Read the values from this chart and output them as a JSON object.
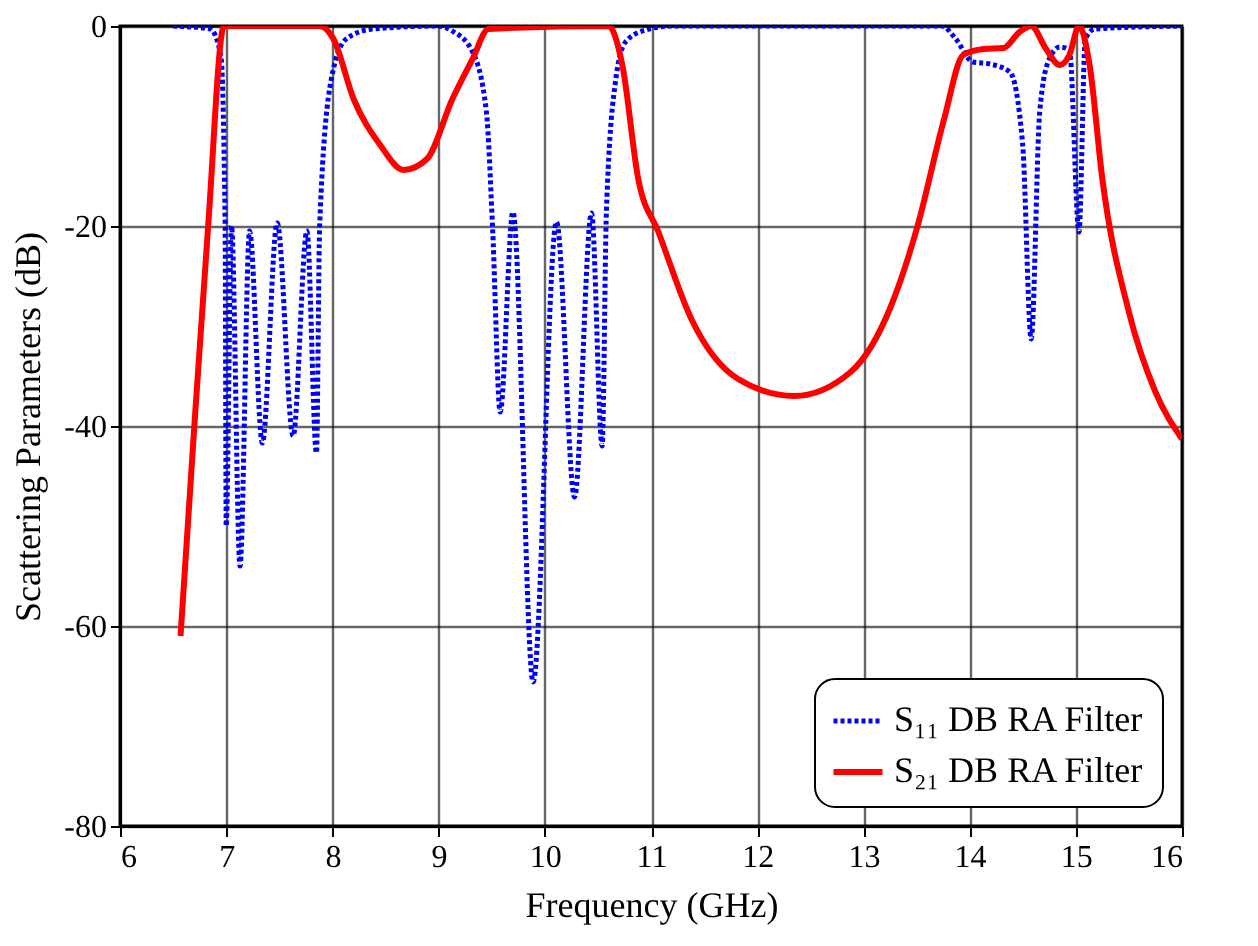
{
  "chart_data": {
    "type": "line",
    "xlabel": "Frequency (GHz)",
    "ylabel": "Scattering Parameters (dB)",
    "xlim": [
      6,
      16
    ],
    "ylim": [
      -80,
      0
    ],
    "xticks": [
      6,
      7,
      8,
      9,
      10,
      11,
      12,
      13,
      14,
      15,
      16
    ],
    "yticks": [
      -80,
      -60,
      -40,
      -20,
      0
    ],
    "grid": true,
    "legend": "bottom right",
    "marker": "none",
    "series": [
      {
        "name": "S₁₁ DB RA Filter",
        "color": "#0000ff",
        "line_style": "dotted",
        "x": [
          6.5,
          6.85,
          6.95,
          6.99,
          7.0,
          7.05,
          7.13,
          7.22,
          7.34,
          7.48,
          7.63,
          7.76,
          7.85,
          7.88,
          7.99,
          8.13,
          8.38,
          9.0,
          9.13,
          9.32,
          9.45,
          9.51,
          9.58,
          9.7,
          9.89,
          10.11,
          10.28,
          10.44,
          10.54,
          10.58,
          10.67,
          10.76,
          10.95,
          11.2,
          13.74,
          13.87,
          14.03,
          14.19,
          14.38,
          14.5,
          14.58,
          14.66,
          14.75,
          14.85,
          14.94,
          15.03,
          15.09,
          15.18,
          16.0
        ],
        "values": [
          0,
          -0.3,
          -3,
          -20,
          -50,
          -20,
          -54,
          -20.5,
          -41.7,
          -19.7,
          -41,
          -20.5,
          -42.7,
          -20,
          -5.3,
          -1.3,
          -0.3,
          0,
          -0.5,
          -2.6,
          -8.6,
          -20.6,
          -38.6,
          -18.6,
          -65.6,
          -19.6,
          -47.1,
          -18.7,
          -42,
          -18.6,
          -5.2,
          -1.6,
          -0.4,
          0,
          0,
          -1.3,
          -3.6,
          -3.8,
          -4.6,
          -11.9,
          -31.3,
          -8.6,
          -3.3,
          -2.1,
          -2.4,
          -20.6,
          -1.3,
          -0.3,
          0
        ]
      },
      {
        "name": "S₂₁ DB RA Filter",
        "color": "#ff0000",
        "line_style": "solid",
        "x": [
          6.57,
          6.7,
          6.83,
          6.98,
          7.88,
          8.01,
          8.2,
          8.45,
          8.67,
          8.89,
          9.13,
          9.32,
          9.47,
          10.6,
          10.73,
          10.88,
          11.07,
          11.38,
          11.82,
          12.35,
          12.88,
          13.26,
          13.51,
          13.76,
          13.94,
          14.13,
          14.32,
          14.47,
          14.58,
          14.72,
          14.85,
          14.94,
          15.03,
          15.13,
          15.25,
          15.5,
          15.75,
          16.0
        ],
        "values": [
          -61,
          -40,
          -20,
          0,
          0,
          -1.3,
          -7.3,
          -11.9,
          -14.4,
          -13.3,
          -7.3,
          -3.3,
          -0.3,
          0,
          -3.9,
          -15.3,
          -20.6,
          -29.3,
          -35.3,
          -37,
          -34.6,
          -28,
          -20,
          -9.3,
          -2.9,
          -2.3,
          -2.2,
          -0.6,
          0,
          -2.3,
          -3.9,
          -2.9,
          0,
          -3.9,
          -15.3,
          -28.6,
          -36.6,
          -41.3
        ]
      }
    ]
  }
}
